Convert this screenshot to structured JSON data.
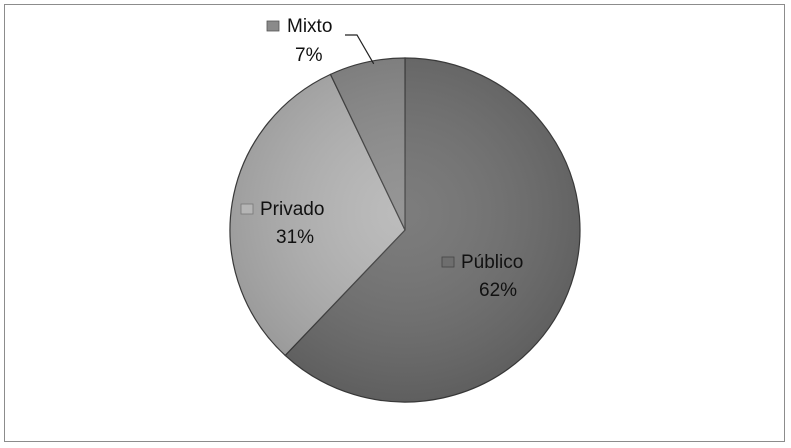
{
  "chart_data": {
    "type": "pie",
    "title": "",
    "slices": [
      {
        "name": "Público",
        "value": 62,
        "label": "62%",
        "color": "#6e6e6e"
      },
      {
        "name": "Privado",
        "value": 31,
        "label": "31%",
        "color": "#b5b5b5"
      },
      {
        "name": "Mixto",
        "value": 7,
        "label": "7%",
        "color": "#8a8a8a"
      }
    ],
    "start_angle": "12 o'clock",
    "direction": "clockwise",
    "legend": "none",
    "data_labels": "category name with legend key and percentage"
  }
}
